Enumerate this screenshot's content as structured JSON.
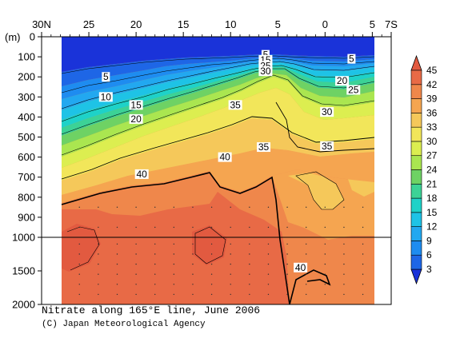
{
  "chart_data": {
    "type": "heatmap",
    "title": "Nitrate along 165°E line, June 2006",
    "credit": "(C) Japan Meteorological Agency",
    "xlabel": "",
    "ylabel": "(m)",
    "x_ticks": [
      "30N",
      "25",
      "20",
      "15",
      "10",
      "5",
      "0",
      "5",
      "7S"
    ],
    "x_tick_values": [
      30,
      25,
      20,
      15,
      10,
      5,
      0,
      -5,
      -7
    ],
    "y_ticks": [
      "0",
      "100",
      "200",
      "300",
      "400",
      "500",
      "600",
      "700",
      "800",
      "900",
      "1000",
      "1500",
      "2000"
    ],
    "y_tick_values": [
      0,
      100,
      200,
      300,
      400,
      500,
      600,
      700,
      800,
      900,
      1000,
      1500,
      2000
    ],
    "xlim": [
      30,
      -7
    ],
    "ylim": [
      0,
      2000
    ],
    "colorbar": {
      "levels": [
        3,
        6,
        9,
        12,
        15,
        18,
        21,
        24,
        27,
        30,
        33,
        36,
        39,
        42,
        45
      ],
      "colors": [
        "#1a33d9",
        "#1e66e6",
        "#1e8cf0",
        "#22a8f0",
        "#1ec3e6",
        "#1ed2c8",
        "#3cd296",
        "#6ed264",
        "#aae650",
        "#dcee50",
        "#f2e65a",
        "#f5c85a",
        "#f5a550",
        "#ef874b",
        "#e86a46",
        "#e25a40"
      ]
    },
    "contour_labels": [
      {
        "value": "5",
        "lat": 23.2,
        "depth": 200
      },
      {
        "value": "10",
        "lat": 23.2,
        "depth": 300
      },
      {
        "value": "15",
        "lat": 20.0,
        "depth": 340
      },
      {
        "value": "20",
        "lat": 20.0,
        "depth": 410
      },
      {
        "value": "35",
        "lat": 9.5,
        "depth": 340
      },
      {
        "value": "35",
        "lat": 6.5,
        "depth": 550
      },
      {
        "value": "40",
        "lat": 19.4,
        "depth": 685
      },
      {
        "value": "40",
        "lat": 10.6,
        "depth": 600
      },
      {
        "value": "5",
        "lat": 6.3,
        "depth": 90
      },
      {
        "value": "15",
        "lat": 6.3,
        "depth": 115
      },
      {
        "value": "25",
        "lat": 6.3,
        "depth": 145
      },
      {
        "value": "30",
        "lat": 6.3,
        "depth": 172
      },
      {
        "value": "5",
        "lat": -2.8,
        "depth": 110
      },
      {
        "value": "20",
        "lat": -1.8,
        "depth": 220
      },
      {
        "value": "25",
        "lat": -3.0,
        "depth": 265
      },
      {
        "value": "30",
        "lat": -0.2,
        "depth": 375
      },
      {
        "value": "35",
        "lat": -0.2,
        "depth": 545
      },
      {
        "value": "40",
        "lat": 2.6,
        "depth": 1450
      }
    ]
  }
}
